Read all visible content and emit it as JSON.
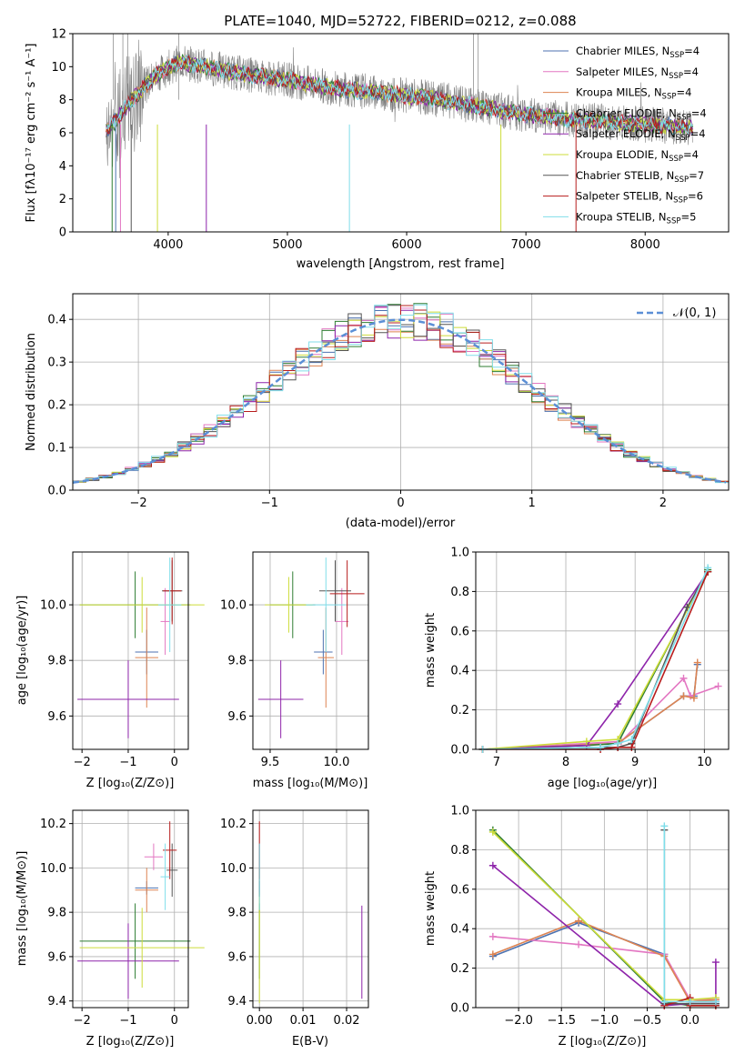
{
  "title": "PLATE=1040, MJD=52722, FIBERID=0212, z=0.088",
  "colors": {
    "Chabrier MILES": "#4c72b0",
    "Salpeter MILES": "#e377c2",
    "Kroupa MILES": "#dd8452",
    "Chabrier ELODIE": "#2e7d32",
    "Salpeter ELODIE": "#8e24aa",
    "Kroupa ELODIE": "#cddc39",
    "Chabrier STELIB": "#555555",
    "Salpeter STELIB": "#b71c1c",
    "Kroupa STELIB": "#80deea",
    "data": "#808080",
    "normal": "#5b8fd6"
  },
  "panels": {
    "spectrum": {
      "xlabel": "wavelength [Angstrom, rest frame]",
      "ylabel": "Flux [fλ10⁻¹⁷ erg cm⁻² s⁻¹ A⁻¹]",
      "legend": [
        {
          "name": "Chabrier MILES",
          "text": "Chabrier MILES, N",
          "n": "=4"
        },
        {
          "name": "Salpeter MILES",
          "text": "Salpeter MILES, N",
          "n": "=4"
        },
        {
          "name": "Kroupa MILES",
          "text": "Kroupa MILES, N",
          "n": "=4"
        },
        {
          "name": "Chabrier ELODIE",
          "text": "Chabrier ELODIE, N",
          "n": "=4"
        },
        {
          "name": "Salpeter ELODIE",
          "text": "Salpeter ELODIE, N",
          "n": "=4"
        },
        {
          "name": "Kroupa ELODIE",
          "text": "Kroupa ELODIE, N",
          "n": "=4"
        },
        {
          "name": "Chabrier STELIB",
          "text": "Chabrier STELIB, N",
          "n": "=7"
        },
        {
          "name": "Salpeter STELIB",
          "text": "Salpeter STELIB, N",
          "n": "=6"
        },
        {
          "name": "Kroupa STELIB",
          "text": "Kroupa STELIB, N",
          "n": "=5"
        }
      ],
      "legend_sub": "SSP"
    },
    "histogram": {
      "xlabel": "(data-model)/error",
      "ylabel": "Normed distribution",
      "legend": "𝒩(0, 1)"
    },
    "age_Z": {
      "xlabel": "Z [log₁₀(Z/Z⊙)]",
      "ylabel": "age  [log₁₀(age/yr)]"
    },
    "age_mass": {
      "xlabel": "mass [log₁₀(M/M⊙)]",
      "ylabel": ""
    },
    "mw_age": {
      "xlabel": "age  [log₁₀(age/yr)]",
      "ylabel": "mass weight"
    },
    "mass_Z": {
      "xlabel": "Z [log₁₀(Z/Z⊙)]",
      "ylabel": "mass [log₁₀(M/M⊙)]"
    },
    "mass_ebv": {
      "xlabel": "E(B-V)",
      "ylabel": ""
    },
    "mw_Z": {
      "xlabel": "Z [log₁₀(Z/Z⊙)]",
      "ylabel": "mass weight"
    }
  },
  "chart_data": [
    {
      "type": "line",
      "title": "PLATE=1040, MJD=52722, FIBERID=0212, z=0.088",
      "xlabel": "wavelength [Angstrom, rest frame]",
      "ylabel": "Flux [fλ10⁻¹⁷ erg cm⁻² s⁻¹ A⁻¹]",
      "xlim": [
        3200,
        8700
      ],
      "ylim": [
        0,
        12
      ],
      "xticks": [
        4000,
        5000,
        6000,
        7000,
        8000
      ],
      "yticks": [
        0,
        2,
        4,
        6,
        8,
        10,
        12
      ],
      "continuum": {
        "x": [
          3500,
          3700,
          3900,
          4100,
          4300,
          4600,
          5000,
          5400,
          5800,
          6200,
          6600,
          7000,
          7400,
          7800,
          8200,
          8400
        ],
        "y": [
          6.2,
          8.0,
          9.5,
          10.3,
          10.0,
          9.6,
          9.2,
          8.7,
          8.4,
          8.1,
          7.6,
          7.1,
          6.8,
          6.6,
          6.4,
          6.3
        ]
      },
      "series": [
        "Chabrier MILES",
        "Salpeter MILES",
        "Kroupa MILES",
        "Chabrier ELODIE",
        "Salpeter ELODIE",
        "Kroupa ELODIE",
        "Chabrier STELIB",
        "Salpeter STELIB",
        "Kroupa STELIB"
      ]
    },
    {
      "type": "line",
      "xlabel": "(data-model)/error",
      "ylabel": "Normed distribution",
      "xlim": [
        -2.5,
        2.5
      ],
      "ylim": [
        0,
        0.46
      ],
      "xticks": [
        -2,
        -1,
        0,
        1,
        2
      ],
      "yticks": [
        0.0,
        0.1,
        0.2,
        0.3,
        0.4
      ],
      "normal": {
        "mean": 0,
        "sigma": 1
      }
    },
    {
      "type": "scatter",
      "xlabel": "Z [log₁₀(Z/Z⊙)]",
      "ylabel": "age  [log₁₀(age/yr)]",
      "xlim": [
        -2.2,
        0.3
      ],
      "ylim": [
        9.48,
        10.19
      ],
      "xticks": [
        -2,
        -1,
        0
      ],
      "yticks": [
        9.6,
        9.8,
        10.0
      ],
      "points": [
        {
          "series": "Chabrier MILES",
          "x": -0.6,
          "y": 9.83,
          "xerr": 0.25,
          "yerr": 0.08
        },
        {
          "series": "Salpeter MILES",
          "x": -0.2,
          "y": 9.94,
          "xerr": 0.1,
          "yerr": 0.12
        },
        {
          "series": "Kroupa MILES",
          "x": -0.6,
          "y": 9.81,
          "xerr": 0.25,
          "yerr": 0.18
        },
        {
          "series": "Chabrier ELODIE",
          "x": -0.85,
          "y": 10.0,
          "xerr": 1.2,
          "yerr": 0.12
        },
        {
          "series": "Salpeter ELODIE",
          "x": -1.0,
          "y": 9.66,
          "xerr": 1.1,
          "yerr": 0.14
        },
        {
          "series": "Kroupa ELODIE",
          "x": -0.7,
          "y": 10.0,
          "xerr": 1.35,
          "yerr": 0.1
        },
        {
          "series": "Chabrier STELIB",
          "x": -0.05,
          "y": 10.05,
          "xerr": 0.22,
          "yerr": 0.11
        },
        {
          "series": "Salpeter STELIB",
          "x": -0.05,
          "y": 10.05,
          "xerr": 0.2,
          "yerr": 0.12
        },
        {
          "series": "Kroupa STELIB",
          "x": -0.1,
          "y": 10.0,
          "xerr": 0.25,
          "yerr": 0.17
        }
      ]
    },
    {
      "type": "scatter",
      "xlabel": "mass [log₁₀(M/M⊙)]",
      "xlim": [
        9.37,
        10.24
      ],
      "ylim": [
        9.48,
        10.19
      ],
      "xticks": [
        9.5,
        10.0
      ],
      "yticks": [
        9.6,
        9.8,
        10.0
      ],
      "points": [
        {
          "series": "Chabrier MILES",
          "x": 9.9,
          "y": 9.83,
          "xerr": 0.07,
          "yerr": 0.08
        },
        {
          "series": "Salpeter MILES",
          "x": 10.04,
          "y": 9.94,
          "xerr": 0.05,
          "yerr": 0.12
        },
        {
          "series": "Kroupa MILES",
          "x": 9.92,
          "y": 9.81,
          "xerr": 0.06,
          "yerr": 0.18
        },
        {
          "series": "Chabrier ELODIE",
          "x": 9.67,
          "y": 10.0,
          "xerr": 0.17,
          "yerr": 0.12
        },
        {
          "series": "Salpeter ELODIE",
          "x": 9.58,
          "y": 9.66,
          "xerr": 0.17,
          "yerr": 0.14
        },
        {
          "series": "Kroupa ELODIE",
          "x": 9.64,
          "y": 10.0,
          "xerr": 0.18,
          "yerr": 0.1
        },
        {
          "series": "Chabrier STELIB",
          "x": 9.99,
          "y": 10.05,
          "xerr": 0.12,
          "yerr": 0.11
        },
        {
          "series": "Salpeter STELIB",
          "x": 10.08,
          "y": 10.04,
          "xerr": 0.13,
          "yerr": 0.12
        },
        {
          "series": "Kroupa STELIB",
          "x": 9.92,
          "y": 10.0,
          "xerr": 0.15,
          "yerr": 0.17
        }
      ]
    },
    {
      "type": "line",
      "xlabel": "age  [log₁₀(age/yr)]",
      "ylabel": "mass weight",
      "xlim": [
        6.7,
        10.35
      ],
      "ylim": [
        0,
        1
      ],
      "xticks": [
        7,
        8,
        9,
        10
      ],
      "yticks": [
        0.0,
        0.2,
        0.4,
        0.6,
        0.8,
        1.0
      ],
      "series": [
        {
          "name": "Chabrier MILES",
          "x": [
            6.8,
            8.75,
            9.7,
            9.85,
            9.9
          ],
          "y": [
            0.0,
            0.03,
            0.27,
            0.27,
            0.43
          ]
        },
        {
          "name": "Salpeter MILES",
          "x": [
            6.8,
            8.8,
            9.7,
            9.8,
            10.2
          ],
          "y": [
            0.0,
            0.04,
            0.36,
            0.27,
            0.32
          ]
        },
        {
          "name": "Kroupa MILES",
          "x": [
            6.8,
            8.75,
            9.7,
            9.85,
            9.9
          ],
          "y": [
            0.0,
            0.03,
            0.27,
            0.26,
            0.44
          ]
        },
        {
          "name": "Chabrier ELODIE",
          "x": [
            6.8,
            8.3,
            8.75,
            10.05
          ],
          "y": [
            0.0,
            0.02,
            0.03,
            0.91
          ]
        },
        {
          "name": "Salpeter ELODIE",
          "x": [
            6.8,
            8.3,
            8.75,
            10.05
          ],
          "y": [
            0.0,
            0.02,
            0.23,
            0.9
          ]
        },
        {
          "name": "Kroupa ELODIE",
          "x": [
            6.8,
            8.3,
            8.75,
            10.05
          ],
          "y": [
            0.0,
            0.04,
            0.05,
            0.9
          ]
        },
        {
          "name": "Chabrier STELIB",
          "x": [
            6.8,
            8.5,
            8.75,
            8.95,
            9.75,
            10.05
          ],
          "y": [
            0.0,
            0.01,
            0.01,
            0.03,
            0.72,
            0.9
          ]
        },
        {
          "name": "Salpeter STELIB",
          "x": [
            6.8,
            8.5,
            8.75,
            8.95,
            10.05
          ],
          "y": [
            0.0,
            0.0,
            0.01,
            0.01,
            0.9
          ]
        },
        {
          "name": "Kroupa STELIB",
          "x": [
            6.8,
            8.5,
            8.75,
            8.95,
            10.05
          ],
          "y": [
            0.0,
            0.01,
            0.03,
            0.05,
            0.92
          ]
        }
      ]
    },
    {
      "type": "scatter",
      "xlabel": "Z [log₁₀(Z/Z⊙)]",
      "ylabel": "mass [log₁₀(M/M⊙)]",
      "xlim": [
        -2.2,
        0.3
      ],
      "ylim": [
        9.37,
        10.26
      ],
      "xticks": [
        -2,
        -1,
        0
      ],
      "yticks": [
        9.4,
        9.6,
        9.8,
        10.0,
        10.2
      ],
      "points": [
        {
          "series": "Chabrier MILES",
          "x": -0.6,
          "y": 9.91,
          "xerr": 0.25,
          "yerr": 0.03
        },
        {
          "series": "Salpeter MILES",
          "x": -0.45,
          "y": 10.05,
          "xerr": 0.2,
          "yerr": 0.06
        },
        {
          "series": "Kroupa MILES",
          "x": -0.6,
          "y": 9.9,
          "xerr": 0.25,
          "yerr": 0.1
        },
        {
          "series": "Chabrier ELODIE",
          "x": -0.85,
          "y": 9.67,
          "xerr": 1.2,
          "yerr": 0.17
        },
        {
          "series": "Salpeter ELODIE",
          "x": -1.0,
          "y": 9.58,
          "xerr": 1.1,
          "yerr": 0.17
        },
        {
          "series": "Kroupa ELODIE",
          "x": -0.7,
          "y": 9.64,
          "xerr": 1.35,
          "yerr": 0.18
        },
        {
          "series": "Chabrier STELIB",
          "x": -0.05,
          "y": 9.99,
          "xerr": 0.12,
          "yerr": 0.12
        },
        {
          "series": "Salpeter STELIB",
          "x": -0.1,
          "y": 10.08,
          "xerr": 0.15,
          "yerr": 0.13
        },
        {
          "series": "Kroupa STELIB",
          "x": -0.2,
          "y": 9.96,
          "xerr": 0.1,
          "yerr": 0.15
        }
      ]
    },
    {
      "type": "scatter",
      "xlabel": "E(B-V)",
      "xlim": [
        -0.0015,
        0.025
      ],
      "ylim": [
        9.37,
        10.26
      ],
      "xticks": [
        0.0,
        0.01,
        0.02
      ],
      "yticks": [
        9.4,
        9.6,
        9.8,
        10.0,
        10.2
      ],
      "points": [
        {
          "series": "Chabrier MILES",
          "x": 0.0,
          "y": 9.91,
          "xerr": 0.0,
          "yerr": 0.03
        },
        {
          "series": "Salpeter MILES",
          "x": 0.0,
          "y": 10.05,
          "xerr": 0.0,
          "yerr": 0.06
        },
        {
          "series": "Kroupa MILES",
          "x": 0.0,
          "y": 9.9,
          "xerr": 0.0,
          "yerr": 0.1
        },
        {
          "series": "Chabrier ELODIE",
          "x": 0.0,
          "y": 9.67,
          "xerr": 0.0,
          "yerr": 0.17
        },
        {
          "series": "Salpeter ELODIE",
          "x": 0.0235,
          "y": 9.62,
          "xerr": 0.0,
          "yerr": 0.21
        },
        {
          "series": "Kroupa ELODIE",
          "x": 0.0,
          "y": 9.64,
          "xerr": 0.0,
          "yerr": 0.25
        },
        {
          "series": "Chabrier STELIB",
          "x": 0.0,
          "y": 9.99,
          "xerr": 0.0,
          "yerr": 0.12
        },
        {
          "series": "Salpeter STELIB",
          "x": 0.0,
          "y": 10.08,
          "xerr": 0.0,
          "yerr": 0.13
        },
        {
          "series": "Kroupa STELIB",
          "x": 0.0,
          "y": 9.96,
          "xerr": 0.0,
          "yerr": 0.15
        }
      ]
    },
    {
      "type": "line",
      "xlabel": "Z [log₁₀(Z/Z⊙)]",
      "ylabel": "mass weight",
      "xlim": [
        -2.5,
        0.45
      ],
      "ylim": [
        0,
        1
      ],
      "xticks": [
        -2.0,
        -1.5,
        -1.0,
        -0.5,
        0.0
      ],
      "yticks": [
        0.0,
        0.2,
        0.4,
        0.6,
        0.8,
        1.0
      ],
      "series": [
        {
          "name": "Chabrier MILES",
          "x": [
            -2.3,
            -1.3,
            -0.3,
            0.0,
            0.3
          ],
          "y": [
            0.26,
            0.43,
            0.27,
            0.03,
            0.03
          ]
        },
        {
          "name": "Salpeter MILES",
          "x": [
            -2.3,
            -1.3,
            -0.3,
            0.0,
            0.3
          ],
          "y": [
            0.36,
            0.32,
            0.27,
            0.04,
            0.04
          ]
        },
        {
          "name": "Kroupa MILES",
          "x": [
            -2.3,
            -1.3,
            -0.3,
            0.0,
            0.3
          ],
          "y": [
            0.27,
            0.44,
            0.26,
            0.03,
            0.04
          ]
        },
        {
          "name": "Chabrier ELODIE",
          "x": [
            -2.3,
            -0.3,
            0.0,
            0.3
          ],
          "y": [
            0.9,
            0.03,
            0.01,
            0.01
          ]
        },
        {
          "name": "Salpeter ELODIE",
          "x": [
            -2.3,
            -0.3,
            0.0,
            0.3,
            0.3
          ],
          "y": [
            0.72,
            0.01,
            0.02,
            0.02,
            0.23
          ]
        },
        {
          "name": "Kroupa ELODIE",
          "x": [
            -2.3,
            -0.3,
            0.0,
            0.3
          ],
          "y": [
            0.89,
            0.04,
            0.04,
            0.05
          ]
        },
        {
          "name": "Chabrier STELIB",
          "x": [
            -0.3,
            -0.3,
            0.0,
            0.3
          ],
          "y": [
            0.9,
            0.02,
            0.02,
            0.02
          ]
        },
        {
          "name": "Salpeter STELIB",
          "x": [
            -0.3,
            0.0,
            0.0,
            0.3
          ],
          "y": [
            0.01,
            0.05,
            0.01,
            0.01
          ]
        },
        {
          "name": "Kroupa STELIB",
          "x": [
            -0.3,
            -0.3,
            0.0,
            0.3
          ],
          "y": [
            0.92,
            0.03,
            0.03,
            0.03
          ]
        }
      ]
    }
  ]
}
